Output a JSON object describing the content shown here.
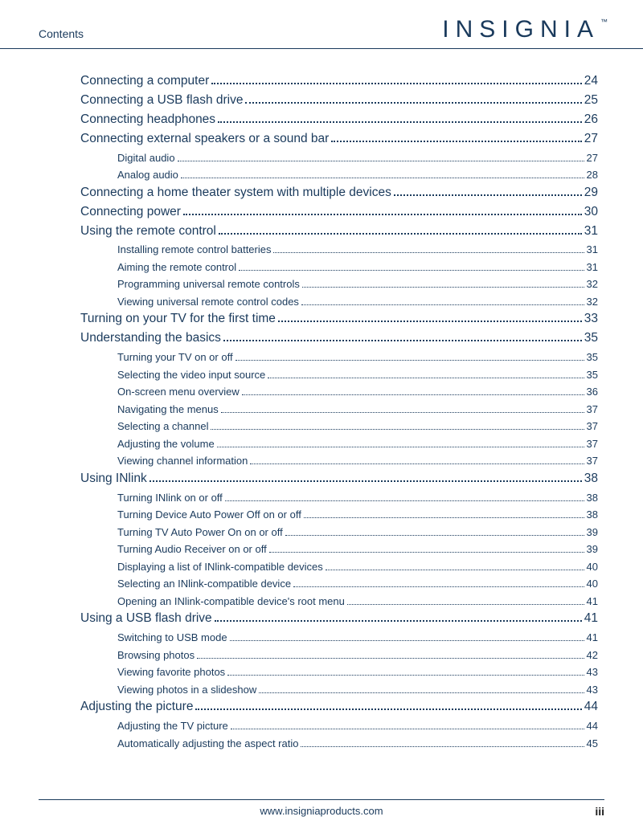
{
  "header": {
    "label": "Contents",
    "brand": "INSIGNIA"
  },
  "colors": {
    "primary": "#1a3a5c",
    "background": "#ffffff"
  },
  "typography": {
    "main_fontsize": 15.5,
    "sub_fontsize": 13,
    "brand_fontsize": 30,
    "brand_letterspacing": 8
  },
  "toc": [
    {
      "level": 1,
      "title": "Connecting a computer",
      "page": "24"
    },
    {
      "level": 1,
      "title": "Connecting a USB flash drive",
      "page": "25"
    },
    {
      "level": 1,
      "title": "Connecting headphones",
      "page": "26"
    },
    {
      "level": 1,
      "title": "Connecting external speakers or a sound bar",
      "page": "27"
    },
    {
      "level": 2,
      "title": "Digital audio",
      "page": "27"
    },
    {
      "level": 2,
      "title": "Analog audio",
      "page": "28"
    },
    {
      "level": 1,
      "title": "Connecting a home theater system with multiple devices",
      "page": "29"
    },
    {
      "level": 1,
      "title": "Connecting power",
      "page": "30"
    },
    {
      "level": 1,
      "title": "Using the remote control",
      "page": "31"
    },
    {
      "level": 2,
      "title": "Installing remote control batteries",
      "page": "31"
    },
    {
      "level": 2,
      "title": "Aiming the remote control",
      "page": "31"
    },
    {
      "level": 2,
      "title": "Programming universal remote controls",
      "page": "32"
    },
    {
      "level": 2,
      "title": "Viewing universal remote control codes",
      "page": "32"
    },
    {
      "level": 1,
      "title": "Turning on your TV for the first time",
      "page": "33"
    },
    {
      "level": 1,
      "title": "Understanding the basics",
      "page": "35"
    },
    {
      "level": 2,
      "title": "Turning your TV on or off",
      "page": "35"
    },
    {
      "level": 2,
      "title": "Selecting the video input source",
      "page": "35"
    },
    {
      "level": 2,
      "title": "On-screen menu overview",
      "page": "36"
    },
    {
      "level": 2,
      "title": "Navigating the menus",
      "page": "37"
    },
    {
      "level": 2,
      "title": "Selecting a channel",
      "page": "37"
    },
    {
      "level": 2,
      "title": "Adjusting the volume",
      "page": "37"
    },
    {
      "level": 2,
      "title": "Viewing channel information",
      "page": "37"
    },
    {
      "level": 1,
      "title": "Using INlink",
      "page": "38"
    },
    {
      "level": 2,
      "title": "Turning INlink on or off",
      "page": "38"
    },
    {
      "level": 2,
      "title": "Turning Device Auto Power Off on or off",
      "page": "38"
    },
    {
      "level": 2,
      "title": "Turning TV Auto Power On on or off",
      "page": "39"
    },
    {
      "level": 2,
      "title": "Turning Audio Receiver on or off",
      "page": "39"
    },
    {
      "level": 2,
      "title": "Displaying a list of INlink-compatible devices",
      "page": "40"
    },
    {
      "level": 2,
      "title": "Selecting an INlink-compatible device",
      "page": "40"
    },
    {
      "level": 2,
      "title": "Opening an INlink-compatible device's root menu",
      "page": "41"
    },
    {
      "level": 1,
      "title": "Using a USB flash drive",
      "page": "41"
    },
    {
      "level": 2,
      "title": "Switching to USB mode",
      "page": "41"
    },
    {
      "level": 2,
      "title": "Browsing photos",
      "page": "42"
    },
    {
      "level": 2,
      "title": "Viewing favorite photos",
      "page": "43"
    },
    {
      "level": 2,
      "title": "Viewing photos in a slideshow",
      "page": "43"
    },
    {
      "level": 1,
      "title": "Adjusting the picture",
      "page": "44"
    },
    {
      "level": 2,
      "title": "Adjusting the TV picture",
      "page": "44"
    },
    {
      "level": 2,
      "title": "Automatically adjusting the aspect ratio",
      "page": "45"
    }
  ],
  "footer": {
    "url": "www.insigniaproducts.com",
    "page_number": "iii"
  }
}
